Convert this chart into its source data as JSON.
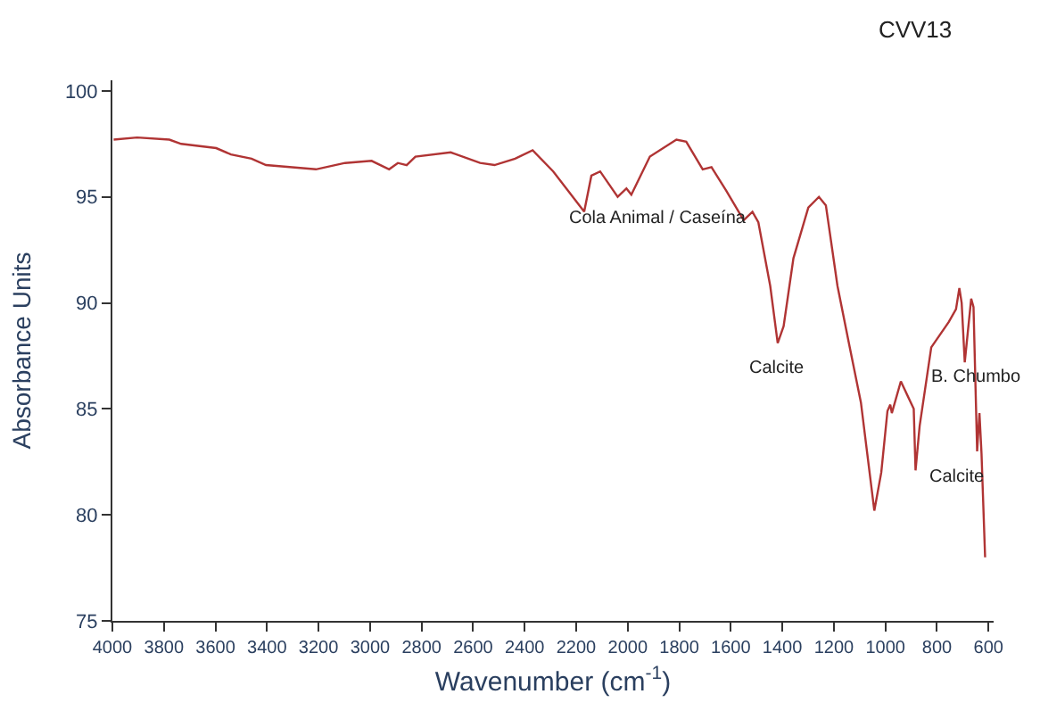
{
  "chart_data": {
    "type": "line",
    "title": "CVV13",
    "xlabel": "Wavenumber (cm$^{-1}$)",
    "ylabel": "Absorbance Units",
    "x": [
      3995,
      3904,
      3779,
      3733,
      3597,
      3540,
      3460,
      3404,
      3210,
      3097,
      2994,
      2926,
      2892,
      2858,
      2824,
      2687,
      2573,
      2517,
      2437,
      2369,
      2289,
      2169,
      2141,
      2107,
      2039,
      2005,
      1986,
      1914,
      1811,
      1773,
      1709,
      1675,
      1618,
      1550,
      1516,
      1493,
      1447,
      1418,
      1395,
      1357,
      1299,
      1258,
      1231,
      1186,
      1140,
      1095,
      1043,
      1016,
      992,
      981,
      975,
      940,
      890,
      883,
      867,
      822,
      754,
      726,
      713,
      704,
      692,
      667,
      658,
      644,
      635,
      627,
      613
    ],
    "series": [
      {
        "color": "#b03434",
        "values": [
          97.7,
          97.8,
          97.7,
          97.5,
          97.3,
          97.0,
          96.8,
          96.5,
          96.3,
          96.6,
          96.7,
          96.3,
          96.6,
          96.5,
          96.9,
          97.1,
          96.6,
          96.5,
          96.8,
          97.2,
          96.2,
          94.3,
          96.0,
          96.2,
          95.0,
          95.4,
          95.1,
          96.9,
          97.7,
          97.6,
          96.3,
          96.4,
          95.3,
          93.9,
          94.3,
          93.8,
          90.8,
          88.1,
          88.9,
          92.1,
          94.5,
          95.0,
          94.6,
          90.8,
          88.0,
          85.3,
          80.2,
          82.0,
          84.9,
          85.2,
          84.8,
          86.3,
          85.0,
          82.1,
          84.2,
          87.9,
          89.1,
          89.7,
          90.7,
          90.0,
          87.2,
          90.2,
          89.8,
          83.0,
          84.8,
          82.9,
          78.0
        ]
      }
    ],
    "xlim": [
      4000,
      580
    ],
    "ylim": [
      75,
      100.5
    ],
    "xticks": [
      4000,
      3800,
      3600,
      3400,
      3200,
      3000,
      2800,
      2600,
      2400,
      2200,
      2000,
      1800,
      1600,
      1400,
      1200,
      1000,
      800,
      600
    ],
    "yticks": [
      75,
      80,
      85,
      90,
      95,
      100
    ],
    "grid": false,
    "line_style": "solid",
    "marker": "none",
    "annotations": [
      {
        "text": "Cola Animal / Caseína",
        "x": 1493,
        "y": 93.8
      },
      {
        "text": "Calcite",
        "x": 1418,
        "y": 88.1
      },
      {
        "text": "Calcite",
        "x": 883,
        "y": 82.1
      },
      "B. Chumbo"
    ]
  }
}
